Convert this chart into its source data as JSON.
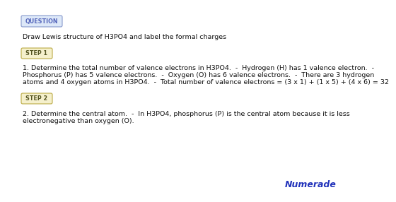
{
  "bg_color": "#ffffff",
  "question_label": "QUESTION",
  "question_label_color": "#5566bb",
  "question_label_bg": "#dde8f8",
  "question_label_border": "#8899cc",
  "question_text": "Draw Lewis structure of H3PO4 and label the formal charges",
  "step1_label": "STEP 1",
  "step1_label_color": "#555522",
  "step1_label_bg": "#f5f0cc",
  "step1_label_border": "#bbaa44",
  "step1_text_line1": "1. Determine the total number of valence electrons in H3PO4.  -  Hydrogen (H) has 1 valence electron.  -",
  "step1_text_line2": "Phosphorus (P) has 5 valence electrons.  -  Oxygen (O) has 6 valence electrons.  -  There are 3 hydrogen",
  "step1_text_line3": "atoms and 4 oxygen atoms in H3PO4.  -  Total number of valence electrons = (3 x 1) + (1 x 5) + (4 x 6) = 32",
  "step2_label": "STEP 2",
  "step2_label_color": "#555522",
  "step2_label_bg": "#f5f0cc",
  "step2_label_border": "#bbaa44",
  "step2_text_line1": "2. Determine the central atom.  -  In H3PO4, phosphorus (P) is the central atom because it is less",
  "step2_text_line2": "electronegative than oxygen (O).",
  "numerade_text": "Numerade",
  "numerade_color": "#2233bb",
  "text_color": "#111111",
  "text_fontsize": 6.8,
  "label_fontsize": 5.8
}
